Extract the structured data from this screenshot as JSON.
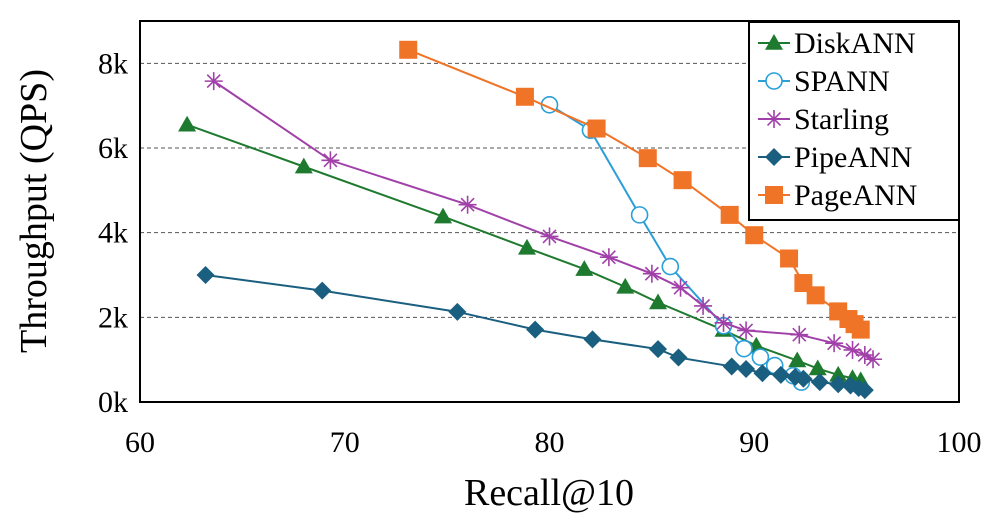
{
  "chart_data": {
    "type": "line",
    "title": "",
    "xlabel": "Recall@10",
    "ylabel": "Throughput (QPS)",
    "xlim": [
      60,
      100
    ],
    "ylim": [
      0,
      9000
    ],
    "x_ticks": [
      {
        "value": 60,
        "label": "60"
      },
      {
        "value": 70,
        "label": "70"
      },
      {
        "value": 80,
        "label": "80"
      },
      {
        "value": 90,
        "label": "90"
      },
      {
        "value": 100,
        "label": "100"
      }
    ],
    "y_ticks": [
      {
        "value": 0,
        "label": "0k"
      },
      {
        "value": 2000,
        "label": "2k"
      },
      {
        "value": 4000,
        "label": "4k"
      },
      {
        "value": 6000,
        "label": "6k"
      },
      {
        "value": 8000,
        "label": "8k"
      }
    ],
    "grid": {
      "horizontal": true,
      "vertical": false,
      "style": "dashed"
    },
    "legend_position": "top-right",
    "series": [
      {
        "name": "DiskANN",
        "color": "#1e7a2e",
        "marker": "triangle",
        "x": [
          62.3,
          68.0,
          74.8,
          78.9,
          81.7,
          83.7,
          85.3,
          88.5,
          90.1,
          92.1,
          93.1,
          94.1,
          94.8,
          95.2
        ],
        "y": [
          6550,
          5560,
          4380,
          3640,
          3140,
          2720,
          2350,
          1700,
          1330,
          980,
          790,
          640,
          560,
          510
        ]
      },
      {
        "name": "SPANN",
        "color": "#2a9fd8",
        "marker": "open-circle",
        "x": [
          80.0,
          82.0,
          84.4,
          85.9,
          88.5,
          89.5,
          90.3,
          91.0,
          91.9,
          92.3
        ],
        "y": [
          7020,
          6420,
          4420,
          3200,
          1800,
          1260,
          1060,
          860,
          620,
          470
        ]
      },
      {
        "name": "Starling",
        "color": "#a040a8",
        "marker": "asterisk",
        "x": [
          63.6,
          69.3,
          76.0,
          80.0,
          82.9,
          85.0,
          86.4,
          87.5,
          88.5,
          89.6,
          92.2,
          93.9,
          94.8,
          95.4,
          95.8
        ],
        "y": [
          7580,
          5710,
          4660,
          3910,
          3420,
          3030,
          2700,
          2270,
          1870,
          1690,
          1590,
          1390,
          1230,
          1110,
          1010
        ]
      },
      {
        "name": "PipeANN",
        "color": "#1a5f80",
        "marker": "diamond",
        "x": [
          63.2,
          68.9,
          75.5,
          79.3,
          82.1,
          85.3,
          86.3,
          88.9,
          89.6,
          90.4,
          91.3,
          92.0,
          92.4,
          93.2,
          94.1,
          94.7,
          95.1,
          95.4
        ],
        "y": [
          3000,
          2630,
          2130,
          1710,
          1480,
          1250,
          1050,
          840,
          780,
          680,
          640,
          590,
          550,
          470,
          420,
          390,
          330,
          280
        ]
      },
      {
        "name": "PageANN",
        "color": "#f07428",
        "marker": "square",
        "x": [
          73.1,
          78.8,
          82.3,
          84.8,
          86.5,
          88.8,
          90.0,
          91.7,
          92.4,
          93.0,
          94.1,
          94.6,
          94.9,
          95.2
        ],
        "y": [
          8320,
          7210,
          6460,
          5760,
          5240,
          4420,
          3940,
          3390,
          2810,
          2520,
          2140,
          1960,
          1840,
          1710
        ]
      }
    ]
  }
}
